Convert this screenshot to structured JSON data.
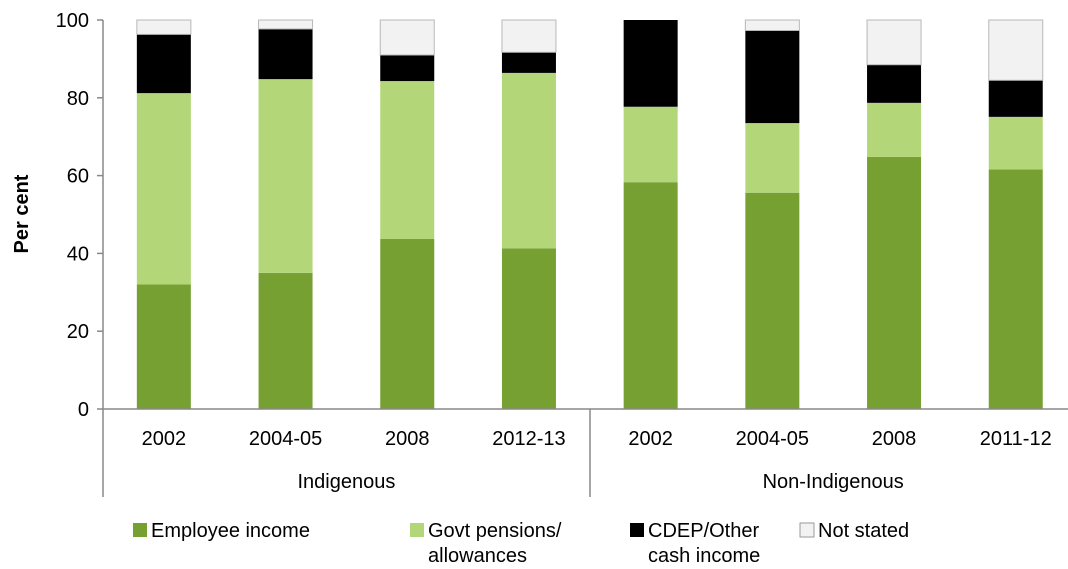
{
  "chart_data": {
    "type": "bar",
    "stacked": true,
    "ylabel": "Per cent",
    "ylim": [
      0,
      100
    ],
    "yticks": [
      0,
      20,
      40,
      60,
      80,
      100
    ],
    "grid": false,
    "legend_position": "bottom",
    "groups": [
      {
        "label": "Indigenous",
        "categories": [
          "2002",
          "2004-05",
          "2008",
          "2012-13"
        ]
      },
      {
        "label": "Non-Indigenous",
        "categories": [
          "2002",
          "2004-05",
          "2008",
          "2011-12"
        ]
      }
    ],
    "categories": [
      "2002",
      "2004-05",
      "2008",
      "2012-13",
      "2002",
      "2004-05",
      "2008",
      "2011-12"
    ],
    "series": [
      {
        "name": "Employee income",
        "color": "#77a033",
        "values": [
          32,
          35,
          43.7,
          41.3,
          58.3,
          55.6,
          64.8,
          61.6
        ]
      },
      {
        "name": "Govt pensions/ allowances",
        "color": "#b3d678",
        "values": [
          49.2,
          49.8,
          40.6,
          45.1,
          19.4,
          17.9,
          13.9,
          13.5
        ]
      },
      {
        "name": "CDEP/Other cash income",
        "color": "#000000",
        "values": [
          15.1,
          12.9,
          6.7,
          5.3,
          22.3,
          23.8,
          9.8,
          9.4
        ]
      },
      {
        "name": "Not stated",
        "color": "#f2f2f2",
        "values": [
          3.7,
          2.3,
          9,
          8.3,
          0,
          2.7,
          11.5,
          15.5
        ]
      }
    ],
    "legend": [
      {
        "line1": "Employee income",
        "line2": ""
      },
      {
        "line1": "Govt pensions/",
        "line2": "allowances"
      },
      {
        "line1": "CDEP/Other",
        "line2": "cash income"
      },
      {
        "line1": "Not stated",
        "line2": ""
      }
    ]
  }
}
